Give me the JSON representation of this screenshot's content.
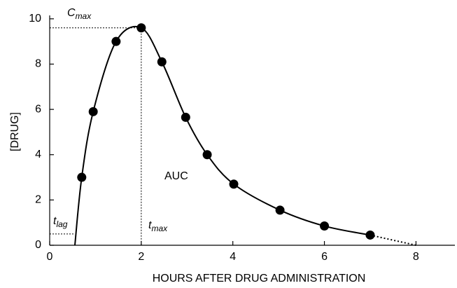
{
  "chart_data": {
    "type": "line",
    "x_label": "HOURS AFTER DRUG ADMINISTRATION",
    "y_label": "[DRUG]",
    "xlim": [
      0,
      8.85
    ],
    "ylim": [
      0,
      10.15
    ],
    "xticks": [
      0,
      2,
      4,
      6,
      8
    ],
    "yticks": [
      0,
      2,
      4,
      6,
      8,
      10
    ],
    "color": "#000000",
    "points": {
      "x": [
        0.7,
        0.95,
        1.45,
        2.0,
        2.45,
        2.97,
        3.44,
        4.02,
        5.03,
        6.0,
        7.0
      ],
      "values": [
        3.0,
        5.9,
        9.0,
        9.6,
        8.1,
        5.65,
        4.0,
        2.7,
        1.55,
        0.85,
        0.45
      ]
    },
    "curve": {
      "x": [
        0.55,
        0.7,
        0.95,
        1.45,
        2.0,
        2.45,
        2.97,
        3.44,
        4.02,
        5.03,
        6.0,
        7.0
      ],
      "values": [
        0,
        3.0,
        5.9,
        9.0,
        9.6,
        8.1,
        5.65,
        4.0,
        2.7,
        1.55,
        0.85,
        0.45
      ]
    },
    "extrapolation": {
      "x": [
        7.0,
        8.0
      ],
      "values": [
        0.45,
        0
      ]
    },
    "cmax": 9.6,
    "tmax": 2.0,
    "tlag": 0.55,
    "tlag_level": 0.5,
    "annotations": {
      "cmax": {
        "text": "C",
        "sub": "max"
      },
      "tmax": {
        "text": "t",
        "sub": "max"
      },
      "tlag": {
        "text": "t",
        "sub": "lag"
      },
      "auc": {
        "text": "AUC"
      }
    }
  }
}
